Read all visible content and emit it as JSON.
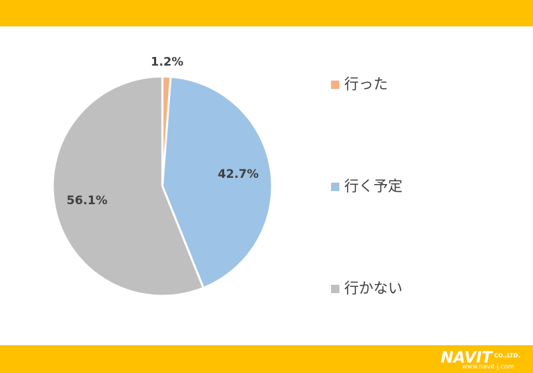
{
  "chart_data": {
    "type": "pie",
    "categories": [
      "行った",
      "行く予定",
      "行かない"
    ],
    "values": [
      1.2,
      42.7,
      56.1
    ],
    "value_labels": [
      "1.2%",
      "42.7%",
      "56.1%"
    ],
    "colors": [
      "#F4B183",
      "#9DC3E6",
      "#BFBFBF"
    ],
    "legend": "right"
  },
  "footer": {
    "logo": "NAVIT",
    "company": "CO.,LTD.",
    "url": "www.navit-j.com"
  }
}
